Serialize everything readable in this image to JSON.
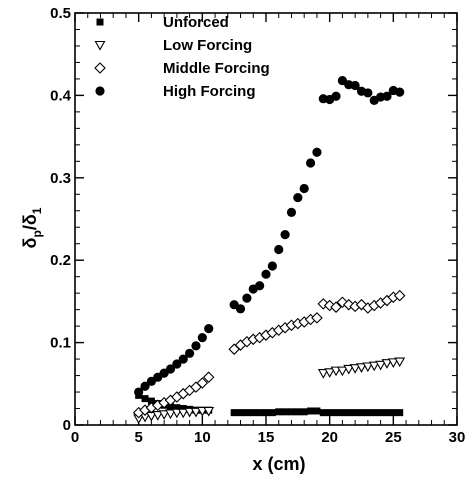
{
  "chart_data": {
    "type": "scatter",
    "xlabel": "x (cm)",
    "ylabel": "δp/δ1",
    "ylabel_main": "δ",
    "ylabel_sub1": "p",
    "ylabel_div": "/δ",
    "ylabel_sub2": "1",
    "xlim": [
      0,
      30
    ],
    "ylim": [
      0,
      0.5
    ],
    "xticks": [
      0,
      5,
      10,
      15,
      20,
      25,
      30
    ],
    "xtick_labels": [
      "0",
      "5",
      "10",
      "15",
      "20",
      "25",
      "30"
    ],
    "yticks": [
      0,
      0.1,
      0.2,
      0.3,
      0.4,
      0.5
    ],
    "ytick_labels": [
      "0",
      "0.1",
      "0.2",
      "0.3",
      "0.4",
      "0.5"
    ],
    "grid": false,
    "legend_position": "top-left",
    "series": [
      {
        "name": "Unforced",
        "marker": "square",
        "points": [
          [
            5.0,
            0.036
          ],
          [
            5.5,
            0.032
          ],
          [
            6.0,
            0.029
          ],
          [
            6.5,
            0.026
          ],
          [
            7.0,
            0.024
          ],
          [
            7.5,
            0.022
          ],
          [
            8.0,
            0.021
          ],
          [
            8.5,
            0.02
          ],
          [
            9.0,
            0.019
          ],
          [
            9.5,
            0.018
          ],
          [
            10.0,
            0.018
          ],
          [
            10.5,
            0.018
          ],
          [
            12.5,
            0.015
          ],
          [
            13.0,
            0.015
          ],
          [
            13.5,
            0.015
          ],
          [
            14.0,
            0.015
          ],
          [
            14.5,
            0.015
          ],
          [
            15.0,
            0.015
          ],
          [
            15.5,
            0.015
          ],
          [
            16.0,
            0.016
          ],
          [
            16.5,
            0.016
          ],
          [
            17.0,
            0.016
          ],
          [
            17.5,
            0.016
          ],
          [
            18.0,
            0.016
          ],
          [
            18.5,
            0.017
          ],
          [
            19.0,
            0.017
          ],
          [
            19.5,
            0.015
          ],
          [
            20.0,
            0.015
          ],
          [
            20.5,
            0.015
          ],
          [
            21.0,
            0.015
          ],
          [
            21.5,
            0.015
          ],
          [
            22.0,
            0.015
          ],
          [
            22.5,
            0.015
          ],
          [
            23.0,
            0.015
          ],
          [
            23.5,
            0.015
          ],
          [
            24.0,
            0.015
          ],
          [
            24.5,
            0.015
          ],
          [
            25.0,
            0.015
          ],
          [
            25.5,
            0.015
          ]
        ]
      },
      {
        "name": "Low Forcing",
        "marker": "triangle-down",
        "points": [
          [
            5.0,
            0.008
          ],
          [
            5.5,
            0.01
          ],
          [
            6.0,
            0.011
          ],
          [
            6.5,
            0.012
          ],
          [
            7.0,
            0.013
          ],
          [
            7.5,
            0.014
          ],
          [
            8.0,
            0.015
          ],
          [
            8.5,
            0.015
          ],
          [
            9.0,
            0.016
          ],
          [
            9.5,
            0.016
          ],
          [
            10.0,
            0.017
          ],
          [
            10.5,
            0.017
          ],
          [
            19.5,
            0.063
          ],
          [
            20.0,
            0.064
          ],
          [
            20.5,
            0.066
          ],
          [
            21.0,
            0.066
          ],
          [
            21.5,
            0.068
          ],
          [
            22.0,
            0.069
          ],
          [
            22.5,
            0.07
          ],
          [
            23.0,
            0.071
          ],
          [
            23.5,
            0.072
          ],
          [
            24.0,
            0.073
          ],
          [
            24.5,
            0.075
          ],
          [
            25.0,
            0.076
          ],
          [
            25.5,
            0.077
          ]
        ]
      },
      {
        "name": "Middle Forcing",
        "marker": "diamond",
        "points": [
          [
            5.0,
            0.015
          ],
          [
            5.5,
            0.018
          ],
          [
            6.0,
            0.021
          ],
          [
            6.5,
            0.024
          ],
          [
            7.0,
            0.027
          ],
          [
            7.5,
            0.03
          ],
          [
            8.0,
            0.034
          ],
          [
            8.5,
            0.038
          ],
          [
            9.0,
            0.042
          ],
          [
            9.5,
            0.046
          ],
          [
            10.0,
            0.051
          ],
          [
            10.5,
            0.058
          ],
          [
            12.5,
            0.092
          ],
          [
            13.0,
            0.097
          ],
          [
            13.5,
            0.101
          ],
          [
            14.0,
            0.104
          ],
          [
            14.5,
            0.106
          ],
          [
            15.0,
            0.109
          ],
          [
            15.5,
            0.112
          ],
          [
            16.0,
            0.115
          ],
          [
            16.5,
            0.118
          ],
          [
            17.0,
            0.121
          ],
          [
            17.5,
            0.123
          ],
          [
            18.0,
            0.125
          ],
          [
            18.5,
            0.128
          ],
          [
            19.0,
            0.13
          ],
          [
            19.5,
            0.147
          ],
          [
            20.0,
            0.145
          ],
          [
            20.5,
            0.143
          ],
          [
            21.0,
            0.149
          ],
          [
            21.5,
            0.146
          ],
          [
            22.0,
            0.144
          ],
          [
            22.5,
            0.146
          ],
          [
            23.0,
            0.142
          ],
          [
            23.5,
            0.145
          ],
          [
            24.0,
            0.148
          ],
          [
            24.5,
            0.151
          ],
          [
            25.0,
            0.155
          ],
          [
            25.5,
            0.157
          ]
        ]
      },
      {
        "name": "High Forcing",
        "marker": "circle",
        "points": [
          [
            5.0,
            0.04
          ],
          [
            5.5,
            0.047
          ],
          [
            6.0,
            0.053
          ],
          [
            6.5,
            0.058
          ],
          [
            7.0,
            0.063
          ],
          [
            7.5,
            0.068
          ],
          [
            8.0,
            0.074
          ],
          [
            8.5,
            0.08
          ],
          [
            9.0,
            0.087
          ],
          [
            9.5,
            0.096
          ],
          [
            10.0,
            0.106
          ],
          [
            10.5,
            0.117
          ],
          [
            12.5,
            0.146
          ],
          [
            13.0,
            0.141
          ],
          [
            13.5,
            0.154
          ],
          [
            14.0,
            0.165
          ],
          [
            14.5,
            0.169
          ],
          [
            15.0,
            0.183
          ],
          [
            15.5,
            0.193
          ],
          [
            16.0,
            0.213
          ],
          [
            16.5,
            0.231
          ],
          [
            17.0,
            0.258
          ],
          [
            17.5,
            0.276
          ],
          [
            18.0,
            0.287
          ],
          [
            18.5,
            0.318
          ],
          [
            19.0,
            0.331
          ],
          [
            19.5,
            0.396
          ],
          [
            20.0,
            0.395
          ],
          [
            20.5,
            0.399
          ],
          [
            21.0,
            0.418
          ],
          [
            21.5,
            0.413
          ],
          [
            22.0,
            0.412
          ],
          [
            22.5,
            0.405
          ],
          [
            23.0,
            0.403
          ],
          [
            23.5,
            0.394
          ],
          [
            24.0,
            0.398
          ],
          [
            24.5,
            0.399
          ],
          [
            25.0,
            0.406
          ],
          [
            25.5,
            0.404
          ]
        ]
      }
    ]
  }
}
